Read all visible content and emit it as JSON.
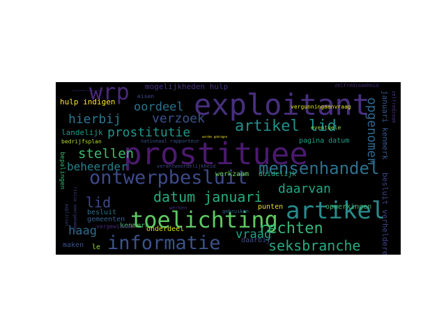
{
  "words": [
    {
      "text": "prostituee",
      "color": "#4a1a6e"
    },
    {
      "text": "exploitant",
      "color": "#472f7d"
    },
    {
      "text": "artikel",
      "color": "#2a8a8c"
    },
    {
      "text": "toelichting",
      "color": "#5ec962"
    },
    {
      "text": "ontwerpbesluit",
      "color": "#3e4a89"
    },
    {
      "text": "informatie",
      "color": "#3b528b"
    },
    {
      "text": "wrp",
      "color": "#482878"
    },
    {
      "text": "mensenhandel",
      "color": "#2c718e"
    },
    {
      "text": "artikel lid",
      "color": "#21918c"
    },
    {
      "text": "rechten",
      "color": "#35b779"
    },
    {
      "text": "seksbranche",
      "color": "#25ab82"
    },
    {
      "text": "datum januari",
      "color": "#27ad81"
    },
    {
      "text": "verzoek",
      "color": "#3b528b"
    },
    {
      "text": "hierbij",
      "color": "#2a788e"
    },
    {
      "text": "stellen",
      "color": "#3fbc73"
    },
    {
      "text": "prostitutie",
      "color": "#1f968b"
    },
    {
      "text": "beheerder",
      "color": "#26828e"
    },
    {
      "text": "oordeel",
      "color": "#2c728e"
    },
    {
      "text": "opgenomen",
      "color": "#31688e"
    },
    {
      "text": "daarvan",
      "color": "#22a884"
    },
    {
      "text": "vraag",
      "color": "#20a386"
    },
    {
      "text": "lid",
      "color": "#3e4a89"
    },
    {
      "text": "haag",
      "color": "#2f6b8e"
    },
    {
      "text": "mogelijkheden hulp",
      "color": "#46337e"
    },
    {
      "text": "hulp indigen",
      "color": "#fde725"
    },
    {
      "text": "januari kenmerk",
      "color": "#39568c"
    },
    {
      "text": "besluit verhelderen",
      "color": "#414487"
    },
    {
      "text": "zelfredzaam",
      "color": "#46327e"
    },
    {
      "text": "zelfredzaamheid",
      "color": "#472d7b"
    },
    {
      "text": "landelijk",
      "color": "#1f9a8a"
    },
    {
      "text": "bedrijfsplan",
      "color": "#b5de2b"
    },
    {
      "text": "bepalingen",
      "color": "#38b977"
    },
    {
      "text": "pagina datum",
      "color": "#1fa088"
    },
    {
      "text": "werkzaam",
      "color": "#6ccd5a"
    },
    {
      "text": "duidelijk",
      "color": "#29af7f"
    },
    {
      "text": "opmerkingen",
      "color": "#3dbc74"
    },
    {
      "text": "kenmerk",
      "color": "#4ac16d"
    },
    {
      "text": "besluit",
      "color": "#2d708e"
    },
    {
      "text": "gemeenten",
      "color": "#35608d"
    },
    {
      "text": "vergewissen",
      "color": "#472c7a"
    },
    {
      "text": "onderdeel",
      "color": "#d8e219"
    },
    {
      "text": "maken",
      "color": "#3b528b"
    },
    {
      "text": "le",
      "color": "#a0da39"
    },
    {
      "text": "daarbij",
      "color": "#3e4c8a"
    },
    {
      "text": "punten",
      "color": "#e5e419"
    },
    {
      "text": "eventuele",
      "color": "#8bd646"
    },
    {
      "text": "vergunningaanvraag",
      "color": "#e2e418"
    },
    {
      "text": "eisen",
      "color": "#3e4989"
    },
    {
      "text": "nationaal rapporteur",
      "color": "#3b528b"
    },
    {
      "text": "verantwoordelijkheid",
      "color": "#3f4889"
    },
    {
      "text": "risico voorgenomen",
      "color": "#414487"
    },
    {
      "text": "werken",
      "color": "#46307e"
    },
    {
      "text": "gebruiken",
      "color": "#31688e"
    },
    {
      "text": "voorgenomen ontwerpbesluit",
      "color": "#472f7d"
    },
    {
      "text": "worden gebrogen",
      "color": "#fde725"
    },
    {
      "text": "expliciet",
      "color": "#3e4a89"
    }
  ]
}
